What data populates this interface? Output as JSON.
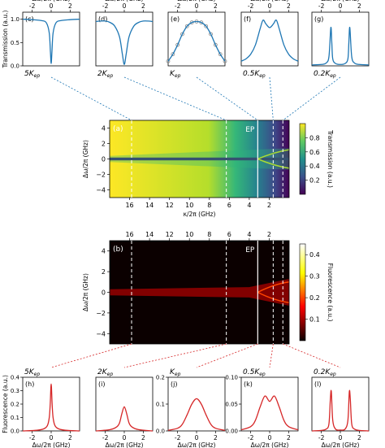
{
  "chart_data": [
    {
      "type": "line",
      "panel": "c",
      "label": "(c)",
      "multiplier": "5K",
      "subscript": "ep",
      "xlabel": "Δω/2π (GHz)",
      "ylabel": "Transmission (a.u.)",
      "xlim": [
        -3,
        3
      ],
      "ylim": [
        0,
        1.15
      ],
      "xticks": [
        -2,
        0,
        2
      ],
      "yticks": [
        0,
        0.5,
        1.0
      ],
      "ytick_labels": [
        "0.0",
        "0.5",
        "1.0"
      ],
      "color": "#1f77b4",
      "series": [
        {
          "x": [
            -3,
            -2,
            -1,
            -0.5,
            -0.2,
            -0.08,
            0,
            0.08,
            0.2,
            0.5,
            1,
            2,
            3
          ],
          "y": [
            1.0,
            0.99,
            0.97,
            0.92,
            0.7,
            0.3,
            0.05,
            0.3,
            0.7,
            0.92,
            0.97,
            0.99,
            1.0
          ]
        }
      ]
    },
    {
      "type": "line",
      "panel": "d",
      "label": "(d)",
      "multiplier": "2K",
      "subscript": "ep",
      "xlabel": "Δω/2π (GHz)",
      "xlim": [
        -3,
        3
      ],
      "ylim": [
        0,
        1.15
      ],
      "xticks": [
        -2,
        0,
        2
      ],
      "color": "#1f77b4",
      "series": [
        {
          "x": [
            -3,
            -2.5,
            -2,
            -1.5,
            -1,
            -0.5,
            -0.2,
            0,
            0.2,
            0.5,
            1,
            1.5,
            2,
            2.5,
            3
          ],
          "y": [
            0.95,
            0.96,
            0.96,
            0.93,
            0.85,
            0.62,
            0.25,
            0.03,
            0.25,
            0.62,
            0.85,
            0.93,
            0.96,
            0.96,
            0.95
          ]
        }
      ]
    },
    {
      "type": "line",
      "panel": "e",
      "label": "(e)",
      "multiplier": "K",
      "subscript": "ep",
      "xlabel": "Δω/2π (GHz)",
      "xlim": [
        -3,
        3
      ],
      "ylim": [
        0,
        1.15
      ],
      "xticks": [
        -2,
        0,
        2
      ],
      "color": "#1f77b4",
      "scatter_color": "#888888",
      "series": [
        {
          "x": [
            -3,
            -2.5,
            -2,
            -1.5,
            -1,
            -0.5,
            0,
            0.5,
            1,
            1.5,
            2,
            2.5,
            3
          ],
          "y": [
            0.1,
            0.25,
            0.45,
            0.68,
            0.85,
            0.93,
            0.95,
            0.93,
            0.85,
            0.68,
            0.45,
            0.25,
            0.1
          ]
        }
      ]
    },
    {
      "type": "line",
      "panel": "f",
      "label": "(f)",
      "multiplier": "0.5K",
      "subscript": "ep",
      "xlabel": "Δω/2π (GHz)",
      "xlim": [
        -3,
        3
      ],
      "ylim": [
        0,
        1.15
      ],
      "xticks": [
        -2,
        0,
        2
      ],
      "color": "#1f77b4",
      "series": [
        {
          "x": [
            -3,
            -2.5,
            -2,
            -1.5,
            -1,
            -0.7,
            -0.4,
            0,
            0.4,
            0.7,
            1,
            1.5,
            2,
            2.5,
            3
          ],
          "y": [
            0.1,
            0.15,
            0.25,
            0.45,
            0.8,
            0.98,
            0.9,
            0.82,
            0.9,
            0.98,
            0.8,
            0.45,
            0.25,
            0.15,
            0.1
          ]
        }
      ]
    },
    {
      "type": "line",
      "panel": "g",
      "label": "(g)",
      "multiplier": "0.2K",
      "subscript": "ep",
      "xlabel": "Δω/2π (GHz)",
      "xlim": [
        -3,
        3
      ],
      "ylim": [
        0,
        1.15
      ],
      "xticks": [
        -2,
        0,
        2
      ],
      "color": "#1f77b4",
      "series": [
        {
          "x": [
            -3,
            -2,
            -1.5,
            -1.2,
            -1.0,
            -0.9,
            -0.8,
            -0.5,
            0,
            0.5,
            0.8,
            0.9,
            1.0,
            1.2,
            1.5,
            2,
            3
          ],
          "y": [
            0.02,
            0.03,
            0.06,
            0.2,
            0.82,
            0.5,
            0.15,
            0.05,
            0.03,
            0.05,
            0.15,
            0.5,
            0.82,
            0.2,
            0.06,
            0.03,
            0.02
          ]
        }
      ]
    },
    {
      "type": "heatmap",
      "panel": "a",
      "label": "(a)",
      "annotation": "EP",
      "xlabel": "κ/2π (GHz)",
      "ylabel": "Δω/2π (GHz)",
      "colorbar_label": "Transmission (a.u.)",
      "colormap": "viridis",
      "xlim": [
        18,
        0
      ],
      "ylim": [
        -5,
        5
      ],
      "xticks": [
        16,
        14,
        12,
        10,
        8,
        6,
        4,
        2
      ],
      "yticks": [
        -4,
        -2,
        0,
        2,
        4
      ],
      "clim": [
        0,
        1
      ],
      "cbar_ticks": [
        0.2,
        0.4,
        0.6,
        0.8
      ],
      "dashed_markers_kappa": [
        15.8,
        6.3,
        1.6,
        0.63
      ],
      "ep_kappa": 3.15
    },
    {
      "type": "heatmap",
      "panel": "b",
      "label": "(b)",
      "annotation": "EP",
      "xlabel": "",
      "ylabel": "Δω/2π (GHz)",
      "colorbar_label": "Fluorescence (a.u.)",
      "colormap": "hot",
      "xlim": [
        18,
        0
      ],
      "ylim": [
        -5,
        5
      ],
      "xticks": [
        16,
        14,
        12,
        10,
        8,
        6,
        4,
        2
      ],
      "yticks": [
        -4,
        -2,
        0,
        2,
        4
      ],
      "clim": [
        0,
        0.45
      ],
      "cbar_ticks": [
        0.1,
        0.2,
        0.3,
        0.4
      ],
      "dashed_markers_kappa": [
        15.8,
        6.3,
        1.6,
        0.63
      ],
      "ep_kappa": 3.15
    },
    {
      "type": "line",
      "panel": "h",
      "label": "(h)",
      "multiplier": "5K",
      "subscript": "ep",
      "xlabel": "Δω/2π (GHz)",
      "ylabel": "Fluorescence (a.u.)",
      "xlim": [
        -3,
        3
      ],
      "ylim": [
        0,
        0.4
      ],
      "xticks": [
        -2,
        0,
        2
      ],
      "yticks": [
        0,
        0.1,
        0.2,
        0.3,
        0.4
      ],
      "ytick_labels": [
        "0.0",
        "0.1",
        "0.2",
        "0.3",
        "0.4"
      ],
      "color": "#d62728",
      "series": [
        {
          "x": [
            -3,
            -1.5,
            -0.8,
            -0.4,
            -0.2,
            -0.1,
            0,
            0.1,
            0.2,
            0.4,
            0.8,
            1.5,
            3
          ],
          "y": [
            0.0,
            0.005,
            0.015,
            0.04,
            0.1,
            0.2,
            0.35,
            0.2,
            0.1,
            0.04,
            0.015,
            0.005,
            0.0
          ]
        }
      ]
    },
    {
      "type": "line",
      "panel": "i",
      "label": "(i)",
      "multiplier": "2K",
      "subscript": "ep",
      "xlabel": "Δω/2π (GHz)",
      "xlim": [
        -3,
        3
      ],
      "ylim": [
        0,
        0.4
      ],
      "xticks": [
        -2,
        0,
        2
      ],
      "color": "#d62728",
      "series": [
        {
          "x": [
            -3,
            -1.5,
            -0.8,
            -0.5,
            -0.25,
            0,
            0.25,
            0.5,
            0.8,
            1.5,
            3
          ],
          "y": [
            0.0,
            0.01,
            0.03,
            0.06,
            0.13,
            0.18,
            0.13,
            0.06,
            0.03,
            0.01,
            0.0
          ]
        }
      ]
    },
    {
      "type": "line",
      "panel": "j",
      "label": "(j)",
      "multiplier": "K",
      "subscript": "ep",
      "xlabel": "Δω/2π (GHz)",
      "xlim": [
        -3,
        3
      ],
      "ylim": [
        0,
        0.2
      ],
      "xticks": [
        -2,
        0,
        2
      ],
      "yticks": [
        0,
        0.1,
        0.2
      ],
      "ytick_labels": [
        "0.0",
        "0.1",
        "0.2"
      ],
      "color": "#d62728",
      "series": [
        {
          "x": [
            -3,
            -2,
            -1.5,
            -1,
            -0.5,
            0,
            0.5,
            1,
            1.5,
            2,
            3
          ],
          "y": [
            0.002,
            0.01,
            0.025,
            0.06,
            0.1,
            0.12,
            0.1,
            0.06,
            0.025,
            0.01,
            0.002
          ]
        }
      ]
    },
    {
      "type": "line",
      "panel": "k",
      "label": "(k)",
      "multiplier": "0.5K",
      "subscript": "ep",
      "xlabel": "Δω/2π (GHz)",
      "xlim": [
        -3,
        3
      ],
      "ylim": [
        0,
        0.1
      ],
      "xticks": [
        -2,
        0,
        2
      ],
      "yticks": [
        0,
        0.05,
        0.1
      ],
      "ytick_labels": [
        "0.00",
        "0.05",
        "0.10"
      ],
      "color": "#d62728",
      "series": [
        {
          "x": [
            -3,
            -2,
            -1.5,
            -1,
            -0.5,
            0,
            0.5,
            1,
            1.5,
            2,
            3
          ],
          "y": [
            0.002,
            0.008,
            0.02,
            0.045,
            0.065,
            0.055,
            0.065,
            0.045,
            0.02,
            0.008,
            0.002
          ]
        }
      ]
    },
    {
      "type": "line",
      "panel": "l",
      "label": "(l)",
      "multiplier": "0.2K",
      "subscript": "ep",
      "xlabel": "Δω/2π (GHz)",
      "xlim": [
        -3,
        3
      ],
      "ylim": [
        0,
        0.3
      ],
      "xticks": [
        -2,
        0,
        2
      ],
      "color": "#d62728",
      "series": [
        {
          "x": [
            -3,
            -2,
            -1.5,
            -1.2,
            -1.05,
            -0.95,
            -0.8,
            -0.5,
            0,
            0.5,
            0.8,
            0.95,
            1.05,
            1.2,
            1.5,
            2,
            3
          ],
          "y": [
            0.0,
            0.003,
            0.01,
            0.04,
            0.18,
            0.22,
            0.06,
            0.01,
            0.005,
            0.01,
            0.06,
            0.22,
            0.18,
            0.04,
            0.01,
            0.003,
            0.0
          ]
        }
      ]
    }
  ]
}
